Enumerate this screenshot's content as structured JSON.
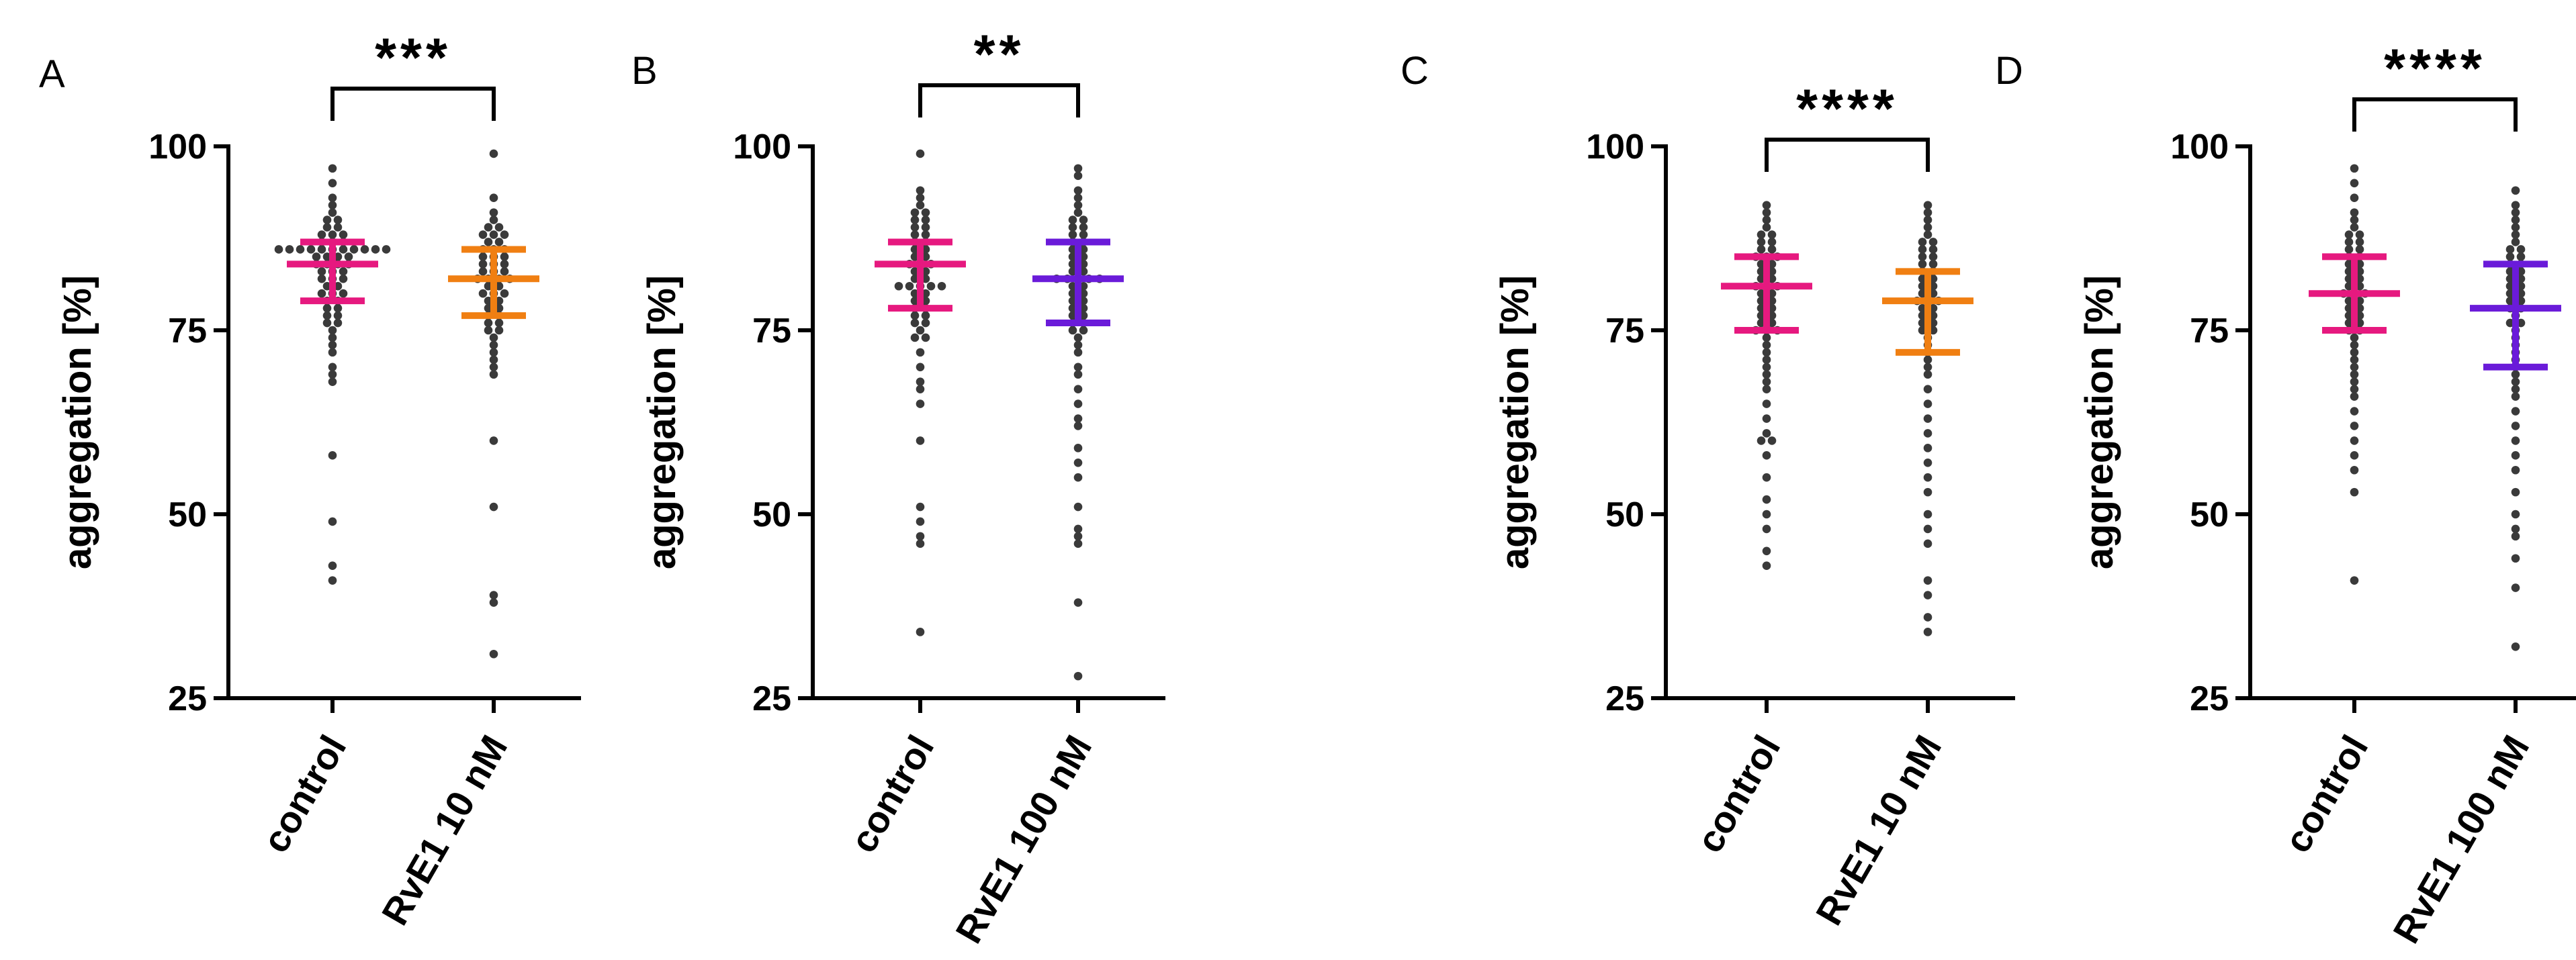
{
  "chart_data": [
    {
      "type": "scatter",
      "panel": "A",
      "ylabel": "aggregation [%]",
      "ylim": [
        25,
        100
      ],
      "yticks": [
        25,
        50,
        75,
        100
      ],
      "categories": [
        "control",
        "RvE1 10 nM"
      ],
      "significance": "***",
      "groups": [
        {
          "name": "control",
          "color": "#e6197f",
          "median": 84,
          "q1": 79,
          "q3": 87,
          "points": [
            97,
            95,
            93,
            92,
            91,
            90,
            90,
            89,
            89,
            88,
            88,
            88,
            87,
            87,
            87,
            86,
            86,
            86,
            86,
            86,
            86,
            86,
            86,
            86,
            86,
            86,
            85,
            85,
            85,
            85,
            84,
            84,
            84,
            84,
            83,
            83,
            83,
            82,
            82,
            82,
            81,
            81,
            80,
            80,
            80,
            79,
            79,
            78,
            78,
            77,
            77,
            76,
            76,
            75,
            74,
            73,
            72,
            70,
            69,
            68,
            58,
            49,
            43,
            41
          ]
        },
        {
          "name": "RvE1 10 nM",
          "color": "#f07f12",
          "median": 82,
          "q1": 77,
          "q3": 86,
          "points": [
            99,
            93,
            91,
            90,
            89,
            89,
            88,
            88,
            88,
            87,
            87,
            86,
            86,
            86,
            85,
            85,
            85,
            84,
            84,
            84,
            83,
            83,
            83,
            82,
            82,
            82,
            82,
            81,
            81,
            80,
            80,
            80,
            79,
            79,
            78,
            78,
            77,
            77,
            76,
            76,
            75,
            75,
            74,
            73,
            72,
            71,
            70,
            69,
            60,
            51,
            39,
            38,
            31
          ]
        }
      ]
    },
    {
      "type": "scatter",
      "panel": "B",
      "ylabel": "aggregation [%]",
      "ylim": [
        25,
        100
      ],
      "yticks": [
        25,
        50,
        75,
        100
      ],
      "categories": [
        "control",
        "RvE1 100 nM"
      ],
      "significance": "**",
      "groups": [
        {
          "name": "control",
          "color": "#e6197f",
          "median": 84,
          "q1": 78,
          "q3": 87,
          "points": [
            99,
            94,
            93,
            92,
            91,
            91,
            90,
            90,
            89,
            89,
            88,
            88,
            87,
            87,
            86,
            86,
            85,
            85,
            84,
            84,
            84,
            83,
            83,
            82,
            82,
            81,
            81,
            81,
            81,
            81,
            80,
            80,
            79,
            79,
            78,
            78,
            77,
            77,
            76,
            76,
            75,
            74,
            74,
            72,
            70,
            68,
            67,
            65,
            60,
            51,
            49,
            47,
            46,
            34
          ]
        },
        {
          "name": "RvE1 100 nM",
          "color": "#6a1bd9",
          "median": 82,
          "q1": 76,
          "q3": 87,
          "points": [
            97,
            96,
            94,
            93,
            92,
            91,
            90,
            90,
            89,
            89,
            88,
            88,
            87,
            87,
            86,
            86,
            85,
            85,
            84,
            84,
            83,
            83,
            82,
            82,
            82,
            82,
            82,
            81,
            81,
            80,
            80,
            79,
            79,
            78,
            78,
            77,
            77,
            76,
            76,
            75,
            75,
            74,
            73,
            72,
            70,
            69,
            67,
            65,
            63,
            62,
            59,
            57,
            55,
            51,
            48,
            47,
            46,
            38,
            28
          ]
        }
      ]
    },
    {
      "type": "scatter",
      "panel": "C",
      "ylabel": "aggregation [%]",
      "ylim": [
        25,
        100
      ],
      "yticks": [
        25,
        50,
        75,
        100
      ],
      "categories": [
        "control",
        "RvE1 10 nM"
      ],
      "significance": "****",
      "groups": [
        {
          "name": "control",
          "color": "#e6197f",
          "median": 81,
          "q1": 75,
          "q3": 85,
          "points": [
            92,
            91,
            90,
            89,
            88,
            88,
            87,
            87,
            86,
            86,
            85,
            85,
            85,
            84,
            84,
            83,
            83,
            82,
            82,
            81,
            81,
            81,
            80,
            80,
            79,
            79,
            78,
            78,
            77,
            77,
            76,
            76,
            75,
            75,
            75,
            74,
            73,
            72,
            71,
            70,
            69,
            68,
            67,
            65,
            63,
            61,
            60,
            60,
            58,
            55,
            52,
            50,
            48,
            45,
            43
          ]
        },
        {
          "name": "RvE1 10 nM",
          "color": "#f07f12",
          "median": 79,
          "q1": 72,
          "q3": 83,
          "points": [
            92,
            91,
            90,
            89,
            88,
            87,
            87,
            86,
            86,
            85,
            85,
            84,
            84,
            83,
            83,
            82,
            82,
            81,
            81,
            80,
            80,
            79,
            79,
            79,
            78,
            78,
            77,
            77,
            76,
            76,
            75,
            75,
            74,
            73,
            72,
            71,
            70,
            69,
            67,
            65,
            63,
            61,
            59,
            57,
            55,
            53,
            50,
            48,
            46,
            41,
            39,
            36,
            34
          ]
        }
      ]
    },
    {
      "type": "scatter",
      "panel": "D",
      "ylabel": "aggregation [%]",
      "ylim": [
        25,
        100
      ],
      "yticks": [
        25,
        50,
        75,
        100
      ],
      "categories": [
        "control",
        "RvE1 100 nM"
      ],
      "significance": "****",
      "groups": [
        {
          "name": "control",
          "color": "#e6197f",
          "median": 80,
          "q1": 75,
          "q3": 85,
          "points": [
            97,
            95,
            93,
            91,
            90,
            89,
            88,
            88,
            87,
            87,
            86,
            86,
            85,
            85,
            84,
            84,
            83,
            83,
            82,
            82,
            81,
            81,
            80,
            80,
            80,
            79,
            79,
            78,
            78,
            77,
            77,
            76,
            76,
            75,
            75,
            74,
            73,
            72,
            71,
            70,
            69,
            68,
            67,
            66,
            64,
            62,
            60,
            58,
            56,
            53,
            41
          ]
        },
        {
          "name": "RvE1 100 nM",
          "color": "#6a1bd9",
          "median": 78,
          "q1": 70,
          "q3": 84,
          "points": [
            94,
            92,
            91,
            90,
            89,
            88,
            87,
            86,
            86,
            85,
            85,
            84,
            84,
            83,
            83,
            82,
            82,
            81,
            81,
            80,
            80,
            79,
            79,
            78,
            78,
            77,
            76,
            76,
            75,
            74,
            73,
            72,
            71,
            70,
            69,
            68,
            67,
            66,
            64,
            62,
            60,
            58,
            56,
            53,
            50,
            48,
            47,
            44,
            40,
            32
          ]
        }
      ]
    }
  ]
}
